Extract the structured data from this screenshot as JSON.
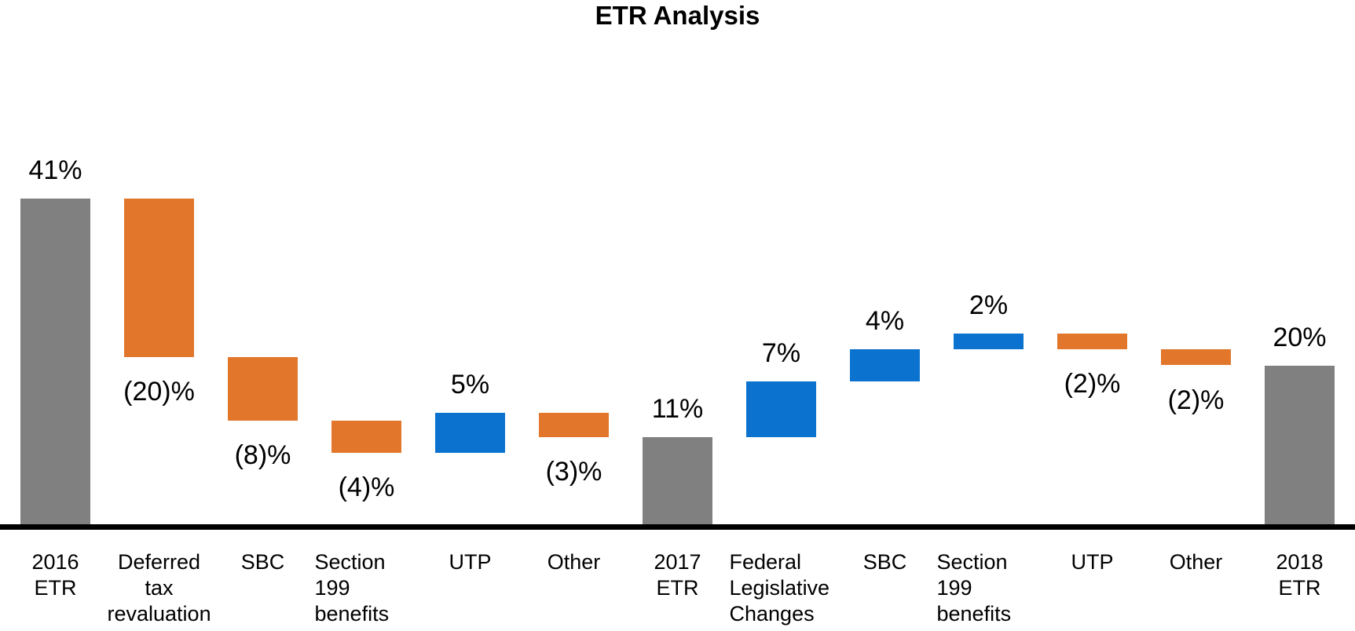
{
  "chart_data": {
    "type": "bar",
    "subtype": "waterfall",
    "title": "ETR Analysis",
    "unit": "%",
    "xlabel": "",
    "ylabel": "",
    "ylim": [
      0,
      41
    ],
    "grid": false,
    "legend": false,
    "colors": {
      "total": "#808080",
      "increase": "#0B73CF",
      "decrease": "#E2772C",
      "axis": "#000000",
      "text": "#000000"
    },
    "categories": [
      "2016 ETR",
      "Deferred tax revaluation",
      "SBC",
      "Section 199 benefits",
      "UTP",
      "Other",
      "2017 ETR",
      "Federal Legislative Changes",
      "SBC",
      "Section 199 benefits",
      "UTP",
      "Other",
      "2018 ETR"
    ],
    "bars": [
      {
        "category": "2016 ETR",
        "lines": [
          "2016",
          "ETR"
        ],
        "type": "total",
        "value": 41,
        "start": 0,
        "end": 41,
        "label": "41%",
        "label_position": "above",
        "align": "center"
      },
      {
        "category": "Deferred tax revaluation",
        "lines": [
          "Deferred",
          "tax",
          "revaluation"
        ],
        "type": "decrease",
        "value": -20,
        "start": 41,
        "end": 21,
        "label": "(20)%",
        "label_position": "below",
        "align": "center"
      },
      {
        "category": "SBC",
        "lines": [
          "SBC"
        ],
        "type": "decrease",
        "value": -8,
        "start": 21,
        "end": 13,
        "label": "(8)%",
        "label_position": "below",
        "align": "center"
      },
      {
        "category": "Section 199 benefits",
        "lines": [
          "Section",
          "199",
          "benefits"
        ],
        "type": "decrease",
        "value": -4,
        "start": 13,
        "end": 9,
        "label": "(4)%",
        "label_position": "below",
        "align": "left"
      },
      {
        "category": "UTP",
        "lines": [
          "UTP"
        ],
        "type": "increase",
        "value": 5,
        "start": 9,
        "end": 14,
        "label": "5%",
        "label_position": "above",
        "align": "center"
      },
      {
        "category": "Other",
        "lines": [
          "Other"
        ],
        "type": "decrease",
        "value": -3,
        "start": 14,
        "end": 11,
        "label": "(3)%",
        "label_position": "below",
        "align": "center"
      },
      {
        "category": "2017 ETR",
        "lines": [
          "2017",
          "ETR"
        ],
        "type": "total",
        "value": 11,
        "start": 0,
        "end": 11,
        "label": "11%",
        "label_position": "above",
        "align": "center"
      },
      {
        "category": "Federal Legislative Changes",
        "lines": [
          "Federal",
          "Legislative",
          "Changes"
        ],
        "type": "increase",
        "value": 7,
        "start": 11,
        "end": 18,
        "label": "7%",
        "label_position": "above",
        "align": "left"
      },
      {
        "category": "SBC",
        "lines": [
          "SBC"
        ],
        "type": "increase",
        "value": 4,
        "start": 18,
        "end": 22,
        "label": "4%",
        "label_position": "above",
        "align": "center"
      },
      {
        "category": "Section 199 benefits",
        "lines": [
          "Section",
          "199",
          "benefits"
        ],
        "type": "increase",
        "value": 2,
        "start": 22,
        "end": 24,
        "label": "2%",
        "label_position": "above",
        "align": "left"
      },
      {
        "category": "UTP",
        "lines": [
          "UTP"
        ],
        "type": "decrease",
        "value": -2,
        "start": 24,
        "end": 22,
        "label": "(2)%",
        "label_position": "below",
        "align": "center"
      },
      {
        "category": "Other",
        "lines": [
          "Other"
        ],
        "type": "decrease",
        "value": -2,
        "start": 22,
        "end": 20,
        "label": "(2)%",
        "label_position": "below",
        "align": "center"
      },
      {
        "category": "2018 ETR",
        "lines": [
          "2018",
          "ETR"
        ],
        "type": "total",
        "value": 20,
        "start": 0,
        "end": 20,
        "label": "20%",
        "label_position": "above",
        "align": "center"
      }
    ]
  }
}
